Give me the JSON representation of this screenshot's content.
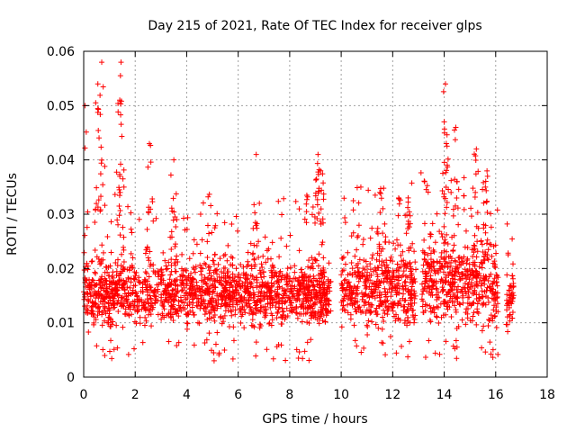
{
  "chart_data": {
    "type": "scatter",
    "title": "Day 215 of 2021, Rate Of TEC Index for receiver glps",
    "xlabel": "GPS time / hours",
    "ylabel": "ROTI / TECUs",
    "xlim": [
      0,
      18
    ],
    "ylim": [
      0,
      0.06
    ],
    "x_ticks": [
      "0",
      "2",
      "4",
      "6",
      "8",
      "10",
      "12",
      "14",
      "16",
      "18"
    ],
    "y_ticks": [
      "0",
      "0.01",
      "0.02",
      "0.03",
      "0.04",
      "0.05",
      "0.06"
    ],
    "grid": true,
    "marker": "+",
    "marker_color": "#ff0000",
    "series": [
      {
        "name": "ROTI",
        "segments": [
          {
            "x_start": 0.0,
            "x_end": 9.6,
            "base_min": 0.007,
            "base_max": 0.022
          },
          {
            "x_start": 10.0,
            "x_end": 12.9,
            "base_min": 0.006,
            "base_max": 0.024
          },
          {
            "x_start": 13.1,
            "x_end": 16.1,
            "base_min": 0.006,
            "base_max": 0.026
          },
          {
            "x_start": 16.4,
            "x_end": 16.7,
            "base_min": 0.005,
            "base_max": 0.021
          }
        ],
        "peaks": [
          {
            "x": 0.05,
            "y": 0.05
          },
          {
            "x": 0.55,
            "y": 0.054
          },
          {
            "x": 0.7,
            "y": 0.058
          },
          {
            "x": 1.45,
            "y": 0.058
          },
          {
            "x": 1.4,
            "y": 0.051
          },
          {
            "x": 2.55,
            "y": 0.043
          },
          {
            "x": 3.5,
            "y": 0.04
          },
          {
            "x": 6.7,
            "y": 0.041
          },
          {
            "x": 9.1,
            "y": 0.041
          },
          {
            "x": 9.2,
            "y": 0.038
          },
          {
            "x": 11.5,
            "y": 0.034
          },
          {
            "x": 12.6,
            "y": 0.033
          },
          {
            "x": 14.05,
            "y": 0.054
          },
          {
            "x": 14.0,
            "y": 0.047
          },
          {
            "x": 14.45,
            "y": 0.046
          },
          {
            "x": 15.25,
            "y": 0.042
          },
          {
            "x": 15.6,
            "y": 0.035
          }
        ]
      }
    ]
  }
}
